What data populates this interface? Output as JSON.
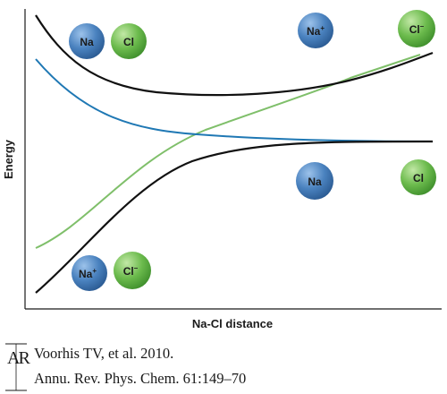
{
  "axes": {
    "x_label": "Na-Cl distance",
    "y_label": "Energy"
  },
  "colors": {
    "sodium_atom": "#3f76b5",
    "chlorine_atom": "#63b447",
    "black_curve": "#111111",
    "blue_curve": "#1f78b4",
    "green_curve": "#7fbf6a"
  },
  "atoms": {
    "top_left_na": "Na",
    "top_left_cl": "Cl",
    "top_right_na": "Na",
    "top_right_na_charge": "+",
    "top_right_cl": "Cl",
    "top_right_cl_charge": "–",
    "mid_right_na": "Na",
    "mid_right_cl": "Cl",
    "bottom_left_na": "Na",
    "bottom_left_na_charge": "+",
    "bottom_left_cl": "Cl",
    "bottom_left_cl_charge": "–"
  },
  "citation": {
    "logo": "AR",
    "line1": "Voorhis TV, et al. 2010.",
    "line2": "Annu. Rev. Phys. Chem. 61:149–70"
  }
}
